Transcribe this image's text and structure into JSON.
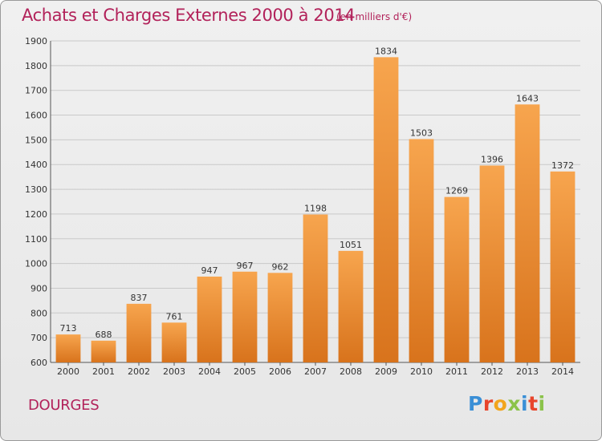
{
  "header": {
    "title": "Achats et Charges Externes 2000 à 2014",
    "subtitle": "(en milliers d'€)"
  },
  "footer": {
    "city": "DOURGES",
    "logo_text": "Proxiti",
    "logo_colors": [
      "#3a8fd6",
      "#e8452c",
      "#f2a51c",
      "#8bc34a",
      "#3a8fd6",
      "#e8452c",
      "#8bc34a"
    ]
  },
  "chart_data": {
    "type": "bar",
    "title": "Achats et Charges Externes 2000 à 2014",
    "subtitle": "(en milliers d'€)",
    "xlabel": "",
    "ylabel": "",
    "categories": [
      "2000",
      "2001",
      "2002",
      "2003",
      "2004",
      "2005",
      "2006",
      "2007",
      "2008",
      "2009",
      "2010",
      "2011",
      "2012",
      "2013",
      "2014"
    ],
    "values": [
      713,
      688,
      837,
      761,
      947,
      967,
      962,
      1198,
      1051,
      1834,
      1503,
      1269,
      1396,
      1643,
      1372
    ],
    "ylim": [
      600,
      1900
    ],
    "yticks": [
      600,
      700,
      800,
      900,
      1000,
      1100,
      1200,
      1300,
      1400,
      1500,
      1600,
      1700,
      1800,
      1900
    ],
    "grid": true,
    "legend": "none",
    "bar_color_top": "#f7a54e",
    "bar_color_bottom": "#d8731c"
  }
}
